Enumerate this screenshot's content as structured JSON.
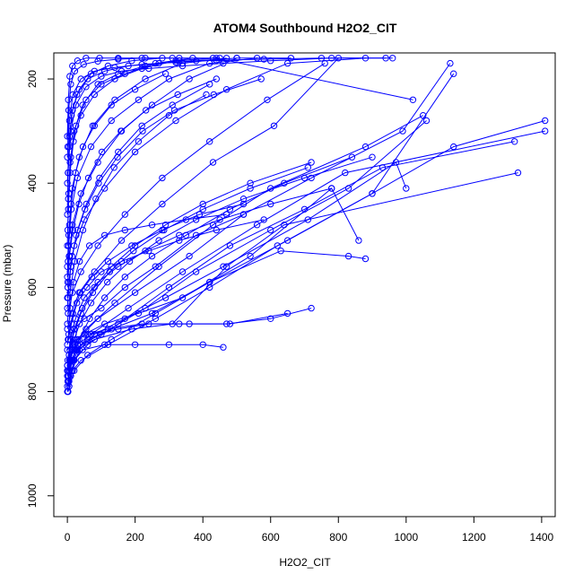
{
  "chart_data": {
    "type": "line",
    "title": "ATOM4 Southbound H2O2_CIT",
    "xlabel": "H2O2_CIT",
    "ylabel": "Pressure (mbar)",
    "xlim": [
      -40,
      1440
    ],
    "ylim": [
      1040,
      150
    ],
    "y_reversed": true,
    "x_ticks": [
      0,
      200,
      400,
      600,
      800,
      1000,
      1200,
      1400
    ],
    "y_ticks": [
      200,
      400,
      600,
      800,
      1000
    ],
    "x_tick_labels": [
      "0",
      "200",
      "400",
      "600",
      "800",
      "1000",
      "1200",
      "1400"
    ],
    "y_tick_labels": [
      "200",
      "400",
      "600",
      "800",
      "1000"
    ],
    "grid": false,
    "legend": "none",
    "marker": "open-circle",
    "color": "#0000ff",
    "series": [
      {
        "x": [
          0,
          5,
          15,
          40,
          120,
          260,
          420,
          620,
          900,
          1140,
          1410
        ],
        "y": [
          800,
          780,
          760,
          740,
          710,
          660,
          600,
          520,
          420,
          330,
          280
        ]
      },
      {
        "x": [
          5,
          10,
          20,
          60,
          150,
          300,
          480,
          700,
          930,
          1320
        ],
        "y": [
          790,
          770,
          740,
          710,
          670,
          600,
          520,
          450,
          370,
          320
        ]
      },
      {
        "x": [
          2,
          8,
          25,
          70,
          180,
          340,
          560,
          820,
          1410
        ],
        "y": [
          780,
          750,
          720,
          690,
          640,
          570,
          480,
          380,
          300
        ]
      },
      {
        "x": [
          0,
          6,
          18,
          55,
          140,
          270,
          430,
          600,
          880,
          1050
        ],
        "y": [
          760,
          740,
          710,
          680,
          630,
          560,
          480,
          410,
          330,
          270
        ]
      },
      {
        "x": [
          3,
          12,
          30,
          90,
          200,
          360,
          520,
          720,
          990,
          1130
        ],
        "y": [
          770,
          730,
          700,
          660,
          610,
          540,
          460,
          390,
          300,
          170
        ]
      },
      {
        "x": [
          1,
          4,
          10,
          30,
          80,
          190,
          310,
          470,
          640,
          1330
        ],
        "y": [
          800,
          770,
          740,
          720,
          700,
          680,
          670,
          560,
          480,
          380
        ]
      },
      {
        "x": [
          0,
          10,
          40,
          100,
          230,
          380,
          600,
          830,
          1060
        ],
        "y": [
          790,
          750,
          710,
          690,
          640,
          570,
          490,
          410,
          280
        ]
      },
      {
        "x": [
          2,
          20,
          60,
          130,
          260,
          420,
          650,
          900,
          1140
        ],
        "y": [
          800,
          760,
          730,
          700,
          650,
          590,
          510,
          420,
          190
        ]
      },
      {
        "x": [
          5,
          15,
          35,
          80,
          170,
          290,
          460,
          710,
          970,
          1000
        ],
        "y": [
          790,
          760,
          720,
          690,
          660,
          620,
          560,
          470,
          360,
          410
        ]
      },
      {
        "x": [
          0,
          8,
          22,
          50,
          110,
          210,
          340,
          540,
          780,
          860
        ],
        "y": [
          770,
          740,
          710,
          690,
          670,
          650,
          620,
          540,
          410,
          510
        ]
      },
      {
        "x": [
          1,
          6,
          14,
          28,
          60,
          130,
          250,
          420,
          630,
          830,
          880
        ],
        "y": [
          780,
          760,
          740,
          720,
          700,
          680,
          650,
          590,
          530,
          540,
          545
        ]
      },
      {
        "x": [
          0,
          12,
          30,
          70,
          150,
          240,
          360,
          480,
          650
        ],
        "y": [
          750,
          730,
          710,
          690,
          680,
          670,
          670,
          670,
          650
        ]
      },
      {
        "x": [
          3,
          18,
          45,
          110,
          200,
          300,
          400,
          460
        ],
        "y": [
          760,
          740,
          720,
          710,
          710,
          710,
          710,
          715
        ]
      },
      {
        "x": [
          0,
          25,
          60,
          120,
          220,
          330,
          470,
          600,
          720
        ],
        "y": [
          720,
          700,
          690,
          680,
          670,
          670,
          670,
          660,
          640
        ]
      },
      {
        "x": [
          4,
          20,
          50,
          100,
          170,
          260,
          380,
          520
        ],
        "y": [
          700,
          680,
          660,
          640,
          600,
          560,
          500,
          460
        ]
      },
      {
        "x": [
          0,
          10,
          35,
          80,
          160,
          280,
          430,
          610,
          800
        ],
        "y": [
          680,
          650,
          610,
          570,
          510,
          440,
          360,
          290,
          160
        ]
      },
      {
        "x": [
          2,
          15,
          40,
          90,
          170,
          280,
          420,
          590,
          760
        ],
        "y": [
          650,
          610,
          570,
          520,
          460,
          390,
          320,
          240,
          170
        ]
      },
      {
        "x": [
          0,
          8,
          20,
          50,
          110,
          200,
          320,
          470,
          650,
          880
        ],
        "y": [
          620,
          570,
          520,
          470,
          410,
          340,
          280,
          220,
          170,
          160
        ]
      },
      {
        "x": [
          1,
          5,
          15,
          40,
          90,
          160,
          250,
          360,
          500
        ],
        "y": [
          600,
          540,
          480,
          420,
          360,
          300,
          250,
          200,
          160
        ]
      },
      {
        "x": [
          0,
          4,
          12,
          30,
          70,
          130,
          210,
          300,
          420,
          560
        ],
        "y": [
          580,
          520,
          450,
          390,
          330,
          280,
          240,
          200,
          170,
          160
        ]
      },
      {
        "x": [
          2,
          6,
          14,
          35,
          75,
          140,
          230,
          340,
          470
        ],
        "y": [
          550,
          480,
          410,
          350,
          290,
          240,
          200,
          170,
          160
        ]
      },
      {
        "x": [
          0,
          3,
          8,
          18,
          40,
          80,
          140,
          220,
          320,
          430
        ],
        "y": [
          520,
          450,
          380,
          320,
          270,
          230,
          200,
          180,
          165,
          160
        ]
      },
      {
        "x": [
          1,
          4,
          10,
          25,
          55,
          100,
          170,
          260,
          370
        ],
        "y": [
          490,
          420,
          350,
          290,
          240,
          210,
          190,
          170,
          160
        ]
      },
      {
        "x": [
          0,
          2,
          6,
          15,
          35,
          70,
          120,
          190,
          280
        ],
        "y": [
          460,
          380,
          310,
          260,
          220,
          190,
          175,
          165,
          160
        ]
      },
      {
        "x": [
          3,
          8,
          20,
          45,
          90,
          150,
          230,
          330,
          440,
          1020
        ],
        "y": [
          430,
          360,
          300,
          250,
          210,
          190,
          175,
          165,
          160,
          240
        ]
      },
      {
        "x": [
          0,
          5,
          12,
          28,
          60,
          110,
          180,
          270,
          380,
          500,
          660
        ],
        "y": [
          400,
          330,
          270,
          230,
          200,
          185,
          175,
          170,
          165,
          160,
          160
        ]
      },
      {
        "x": [
          2,
          10,
          25,
          55,
          100,
          160,
          240,
          340,
          460,
          600,
          780,
          960
        ],
        "y": [
          380,
          300,
          250,
          215,
          195,
          185,
          180,
          175,
          170,
          165,
          160,
          160
        ]
      },
      {
        "x": [
          0,
          6,
          16,
          40,
          80,
          140,
          220,
          320,
          440,
          580,
          750,
          940
        ],
        "y": [
          350,
          280,
          230,
          200,
          185,
          178,
          172,
          168,
          164,
          162,
          160,
          160
        ]
      },
      {
        "x": [
          1,
          4,
          10,
          22,
          48,
          90,
          150,
          230,
          330,
          450
        ],
        "y": [
          330,
          260,
          210,
          185,
          172,
          166,
          162,
          160,
          160,
          160
        ]
      },
      {
        "x": [
          0,
          3,
          7,
          15,
          30,
          55,
          95,
          150,
          220,
          310
        ],
        "y": [
          310,
          240,
          195,
          175,
          165,
          160,
          160,
          160,
          160,
          160
        ]
      },
      {
        "x": [
          2,
          8,
          18,
          36,
          65,
          110,
          170,
          250,
          350,
          470
        ],
        "y": [
          700,
          640,
          590,
          550,
          520,
          500,
          490,
          480,
          470,
          460
        ]
      },
      {
        "x": [
          0,
          12,
          28,
          58,
          100,
          160,
          240,
          330,
          440,
          580
        ],
        "y": [
          710,
          670,
          630,
          600,
          570,
          550,
          530,
          510,
          490,
          470
        ]
      },
      {
        "x": [
          4,
          16,
          38,
          72,
          120,
          190,
          280,
          390,
          520
        ],
        "y": [
          690,
          650,
          610,
          580,
          550,
          520,
          490,
          460,
          440
        ]
      },
      {
        "x": [
          1,
          9,
          24,
          50,
          90,
          150,
          230,
          330,
          450,
          600,
          780
        ],
        "y": [
          740,
          700,
          660,
          620,
          590,
          560,
          530,
          500,
          470,
          440,
          410
        ]
      },
      {
        "x": [
          0,
          7,
          20,
          44,
          80,
          130,
          200,
          290,
          400,
          540,
          720
        ],
        "y": [
          760,
          720,
          680,
          640,
          600,
          560,
          520,
          480,
          440,
          400,
          360
        ]
      },
      {
        "x": [
          3,
          14,
          34,
          66,
          110,
          170,
          250,
          350,
          480,
          640,
          840
        ],
        "y": [
          780,
          740,
          700,
          660,
          620,
          580,
          540,
          500,
          450,
          400,
          350
        ]
      },
      {
        "x": [
          0,
          5,
          14,
          30,
          56,
          95,
          150,
          220,
          310,
          420
        ],
        "y": [
          640,
          590,
          540,
          490,
          440,
          390,
          340,
          290,
          250,
          210
        ]
      },
      {
        "x": [
          2,
          10,
          26,
          52,
          92,
          148,
          222,
          316,
          432,
          572
        ],
        "y": [
          620,
          560,
          500,
          450,
          400,
          350,
          300,
          260,
          230,
          200
        ]
      },
      {
        "x": [
          0,
          8,
          22,
          46,
          84,
          138,
          210,
          300,
          410
        ],
        "y": [
          670,
          610,
          550,
          490,
          430,
          370,
          320,
          270,
          230
        ]
      },
      {
        "x": [
          1,
          6,
          16,
          34,
          62,
          102,
          158,
          232,
          326,
          440
        ],
        "y": [
          590,
          540,
          490,
          440,
          390,
          340,
          300,
          260,
          230,
          200
        ]
      },
      {
        "x": [
          0,
          4,
          11,
          24,
          46,
          80,
          130,
          200,
          290
        ],
        "y": [
          560,
          500,
          440,
          380,
          330,
          290,
          250,
          220,
          190
        ]
      },
      {
        "x": [
          5,
          18,
          40,
          75,
          125,
          195,
          285,
          400,
          540,
          710
        ],
        "y": [
          730,
          690,
          650,
          610,
          570,
          530,
          490,
          450,
          410,
          370
        ]
      },
      {
        "x": [
          0,
          15,
          36,
          70,
          118,
          184,
          270,
          380,
          520,
          700,
          900
        ],
        "y": [
          750,
          710,
          670,
          630,
          590,
          550,
          510,
          470,
          430,
          390,
          350
        ]
      }
    ]
  }
}
